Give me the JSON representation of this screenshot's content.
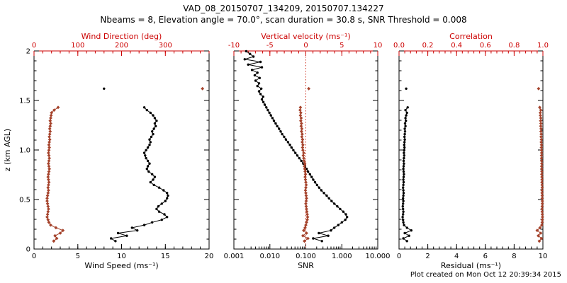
{
  "header": {
    "title": "VAD_08_20150707_134209, 20150707.134227",
    "subtitle": "Nbeams = 8, Elevation angle = 70.0°, scan duration = 30.8 s, SNR Threshold = 0.008"
  },
  "footer": {
    "created": "Plot created on Mon Oct 12 20:39:34 2015"
  },
  "ylabel": "z (km AGL)",
  "colors": {
    "axis_black": "#000000",
    "axis_red": "#cc0000",
    "data_red": "#a5432c",
    "zero_line": "#cc3322"
  },
  "grids": {
    "z51": [
      0.08,
      0.107,
      0.134,
      0.161,
      0.188,
      0.215,
      0.242,
      0.269,
      0.296,
      0.323,
      0.35,
      0.377,
      0.404,
      0.431,
      0.458,
      0.485,
      0.512,
      0.539,
      0.566,
      0.593,
      0.62,
      0.647,
      0.674,
      0.701,
      0.728,
      0.755,
      0.782,
      0.809,
      0.836,
      0.863,
      0.89,
      0.917,
      0.944,
      0.971,
      0.998,
      1.025,
      1.052,
      1.079,
      1.106,
      1.133,
      1.16,
      1.187,
      1.214,
      1.241,
      1.268,
      1.295,
      1.322,
      1.349,
      1.376,
      1.403,
      1.43
    ],
    "z72": [
      0.08,
      0.107,
      0.134,
      0.161,
      0.188,
      0.215,
      0.242,
      0.269,
      0.296,
      0.323,
      0.35,
      0.377,
      0.404,
      0.431,
      0.458,
      0.485,
      0.512,
      0.539,
      0.566,
      0.593,
      0.62,
      0.647,
      0.674,
      0.701,
      0.728,
      0.755,
      0.782,
      0.809,
      0.836,
      0.863,
      0.89,
      0.917,
      0.944,
      0.971,
      0.998,
      1.025,
      1.052,
      1.079,
      1.106,
      1.133,
      1.16,
      1.187,
      1.214,
      1.241,
      1.268,
      1.295,
      1.322,
      1.349,
      1.376,
      1.403,
      1.43,
      1.457,
      1.484,
      1.511,
      1.538,
      1.565,
      1.592,
      1.619,
      1.646,
      1.673,
      1.7,
      1.727,
      1.754,
      1.781,
      1.808,
      1.835,
      1.862,
      1.889,
      1.916,
      1.943,
      1.97,
      1.997
    ]
  },
  "chart_data": [
    {
      "type": "line",
      "name": "wind-panel",
      "ylim": [
        0,
        2
      ],
      "yticks": [
        0,
        0.5,
        1,
        1.5,
        2
      ],
      "ytick_labels": [
        "0",
        "0.5",
        "1.0",
        "1.5",
        "2"
      ],
      "bottom": {
        "label": "Wind Speed (ms⁻¹)",
        "lim": [
          0,
          20
        ],
        "log": false,
        "ticks": [
          0,
          5,
          10,
          15,
          20
        ],
        "tick_labels": [
          "0",
          "5",
          "10",
          "15",
          "20"
        ]
      },
      "top": {
        "label": "Wind Direction (deg)",
        "lim": [
          0,
          400
        ],
        "log": false,
        "ticks": [
          0,
          100,
          200,
          300
        ],
        "tick_labels": [
          "0",
          "100",
          "200",
          "300"
        ]
      },
      "series": [
        {
          "name": "wind-speed",
          "axis": "bottom",
          "color": "#000000",
          "marker": "circle",
          "z": "z51",
          "v": [
            9.3,
            8.8,
            10.6,
            9.6,
            11.8,
            11.2,
            12.6,
            13.5,
            14.6,
            15.2,
            14.9,
            14.3,
            14.0,
            14.2,
            14.6,
            15.0,
            15.2,
            15.3,
            15.2,
            14.8,
            14.3,
            13.7,
            13.3,
            13.6,
            13.8,
            13.5,
            13.1,
            12.9,
            13.0,
            13.2,
            13.0,
            12.8,
            12.7,
            12.6,
            12.8,
            13.0,
            13.2,
            13.3,
            13.2,
            13.4,
            13.6,
            13.5,
            13.7,
            13.9,
            13.8,
            14.0,
            13.8,
            13.6,
            13.3,
            12.9,
            12.6
          ]
        },
        {
          "name": "wind-speed-outlier",
          "axis": "bottom",
          "color": "#000000",
          "marker": "circle",
          "line": false,
          "z": [
            1.619
          ],
          "v": [
            8.0
          ]
        },
        {
          "name": "wind-direction",
          "axis": "top",
          "color": "#a5432c",
          "marker": "diamond",
          "z": "z51",
          "v": [
            45,
            52,
            48,
            60,
            66,
            50,
            38,
            34,
            32,
            30,
            31,
            32,
            33,
            32,
            31,
            30,
            30,
            31,
            32,
            33,
            32,
            33,
            34,
            33,
            32,
            33,
            34,
            35,
            34,
            33,
            34,
            35,
            34,
            33,
            34,
            35,
            34,
            35,
            36,
            35,
            36,
            37,
            36,
            37,
            38,
            37,
            38,
            39,
            40,
            46,
            55
          ]
        },
        {
          "name": "wind-direction-outlier",
          "axis": "top",
          "color": "#a5432c",
          "marker": "diamond",
          "line": false,
          "z": [
            1.619
          ],
          "v": [
            385
          ]
        }
      ]
    },
    {
      "type": "line",
      "name": "snr-panel",
      "ylim": [
        0,
        2
      ],
      "yticks": [
        0,
        0.5,
        1,
        1.5,
        2
      ],
      "ytick_labels": [
        "0",
        "0.5",
        "1.0",
        "1.5",
        "2"
      ],
      "zero_line_at": 0,
      "bottom": {
        "label": "SNR",
        "lim": [
          0.001,
          10
        ],
        "log": true,
        "ticks": [
          0.001,
          0.01,
          0.1,
          1,
          10
        ],
        "tick_labels": [
          "0.001",
          "0.010",
          "0.100",
          "1.000",
          "10.000"
        ]
      },
      "top": {
        "label": "Vertical velocity (ms⁻¹)",
        "lim": [
          -10,
          10
        ],
        "log": false,
        "ticks": [
          -10,
          -5,
          0,
          5,
          10
        ],
        "tick_labels": [
          "-10",
          "-5",
          "0",
          "5",
          "10"
        ]
      },
      "series": [
        {
          "name": "snr-profile",
          "axis": "bottom",
          "color": "#000000",
          "marker": "circle",
          "z": "z72",
          "v": [
            0.28,
            0.16,
            0.42,
            0.23,
            0.5,
            0.62,
            0.8,
            1.0,
            1.25,
            1.4,
            1.3,
            1.1,
            0.9,
            0.75,
            0.62,
            0.52,
            0.44,
            0.38,
            0.32,
            0.27,
            0.235,
            0.205,
            0.18,
            0.16,
            0.145,
            0.13,
            0.115,
            0.105,
            0.095,
            0.085,
            0.075,
            0.066,
            0.058,
            0.051,
            0.045,
            0.04,
            0.036,
            0.032,
            0.028,
            0.025,
            0.022,
            0.02,
            0.018,
            0.016,
            0.0145,
            0.013,
            0.0118,
            0.0107,
            0.0097,
            0.0088,
            0.008,
            0.0072,
            0.0066,
            0.006,
            0.0065,
            0.0055,
            0.005,
            0.0058,
            0.0045,
            0.005,
            0.004,
            0.0052,
            0.0038,
            0.0045,
            0.0032,
            0.006,
            0.0025,
            0.0055,
            0.002,
            0.0035,
            0.0028,
            0.0022
          ]
        },
        {
          "name": "vertical-velocity",
          "axis": "top",
          "color": "#a5432c",
          "marker": "diamond",
          "z": "z51",
          "v": [
            -0.2,
            0.3,
            -0.4,
            0.1,
            -0.3,
            -0.1,
            0.0,
            0.1,
            0.2,
            0.25,
            0.2,
            0.15,
            0.1,
            0.05,
            0.0,
            0.05,
            0.1,
            0.05,
            0.0,
            -0.05,
            0.0,
            0.05,
            0.0,
            -0.05,
            -0.1,
            -0.05,
            -0.1,
            -0.15,
            -0.2,
            -0.15,
            -0.25,
            -0.3,
            -0.35,
            -0.3,
            -0.4,
            -0.45,
            -0.4,
            -0.5,
            -0.45,
            -0.55,
            -0.5,
            -0.6,
            -0.55,
            -0.65,
            -0.6,
            -0.7,
            -0.65,
            -0.75,
            -0.7,
            -0.8,
            -0.75
          ]
        },
        {
          "name": "vertical-velocity-outlier",
          "axis": "top",
          "color": "#a5432c",
          "marker": "diamond",
          "line": false,
          "z": [
            1.619
          ],
          "v": [
            0.4
          ]
        }
      ]
    },
    {
      "type": "line",
      "name": "residual-panel",
      "ylim": [
        0,
        2
      ],
      "yticks": [
        0,
        0.5,
        1,
        1.5,
        2
      ],
      "ytick_labels": [
        "0",
        "0.5",
        "1.0",
        "1.5",
        "2"
      ],
      "bottom": {
        "label": "Residual (ms⁻¹)",
        "lim": [
          0,
          10
        ],
        "log": false,
        "ticks": [
          0,
          2,
          4,
          6,
          8,
          10
        ],
        "tick_labels": [
          "0",
          "2",
          "4",
          "6",
          "8",
          "10"
        ]
      },
      "top": {
        "label": "Correlation",
        "lim": [
          0,
          1
        ],
        "log": false,
        "ticks": [
          0,
          0.2,
          0.4,
          0.6,
          0.8,
          1.0
        ],
        "tick_labels": [
          "0.0",
          "0.2",
          "0.4",
          "0.6",
          "0.8",
          "1.0"
        ]
      },
      "series": [
        {
          "name": "residual-profile",
          "axis": "bottom",
          "color": "#000000",
          "marker": "circle",
          "z": "z51",
          "v": [
            0.55,
            0.3,
            0.7,
            0.4,
            0.85,
            0.55,
            0.35,
            0.3,
            0.28,
            0.25,
            0.28,
            0.3,
            0.28,
            0.26,
            0.28,
            0.3,
            0.28,
            0.3,
            0.32,
            0.3,
            0.28,
            0.3,
            0.32,
            0.3,
            0.32,
            0.34,
            0.32,
            0.3,
            0.32,
            0.34,
            0.32,
            0.34,
            0.36,
            0.34,
            0.36,
            0.38,
            0.36,
            0.38,
            0.4,
            0.38,
            0.4,
            0.42,
            0.4,
            0.45,
            0.42,
            0.48,
            0.45,
            0.5,
            0.55,
            0.45,
            0.6
          ]
        },
        {
          "name": "residual-outlier",
          "axis": "bottom",
          "color": "#000000",
          "marker": "circle",
          "line": false,
          "z": [
            1.619
          ],
          "v": [
            0.5
          ]
        },
        {
          "name": "correlation-profile",
          "axis": "top",
          "color": "#a5432c",
          "marker": "diamond",
          "z": "z51",
          "v": [
            0.975,
            0.99,
            0.968,
            0.985,
            0.96,
            0.98,
            0.992,
            0.995,
            0.996,
            0.997,
            0.996,
            0.995,
            0.994,
            0.995,
            0.996,
            0.996,
            0.995,
            0.995,
            0.994,
            0.994,
            0.995,
            0.994,
            0.993,
            0.994,
            0.993,
            0.992,
            0.993,
            0.992,
            0.991,
            0.992,
            0.991,
            0.99,
            0.99,
            0.991,
            0.99,
            0.989,
            0.99,
            0.988,
            0.989,
            0.987,
            0.988,
            0.986,
            0.987,
            0.985,
            0.986,
            0.984,
            0.985,
            0.983,
            0.982,
            0.985,
            0.978
          ]
        },
        {
          "name": "correlation-outlier",
          "axis": "top",
          "color": "#a5432c",
          "marker": "diamond",
          "line": false,
          "z": [
            1.619
          ],
          "v": [
            0.97
          ]
        }
      ]
    }
  ]
}
